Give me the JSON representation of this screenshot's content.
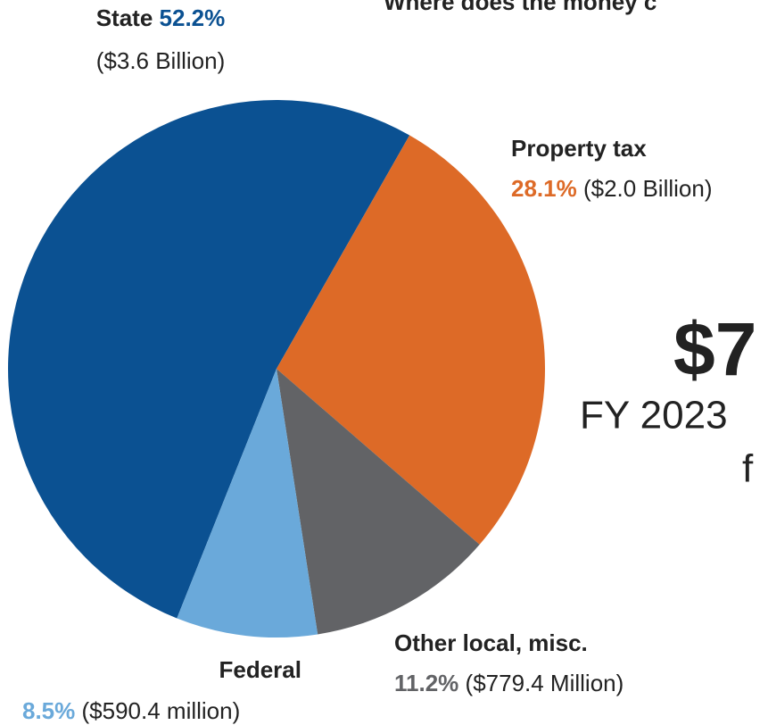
{
  "chart_data": {
    "type": "pie",
    "title": "Where does the money c",
    "big_total": "$7",
    "subtitle_line1": "FY 2023",
    "subtitle_line2": "f",
    "categories": [
      "State",
      "Property tax",
      "Other local, misc.",
      "Federal"
    ],
    "values": [
      52.2,
      28.1,
      11.2,
      8.5
    ],
    "value_labels": [
      "52.2%",
      "28.1%",
      "11.2%",
      "8.5%"
    ],
    "amounts": [
      "($3.6 Billion)",
      "($2.0 Billion)",
      "($779.4 Million)",
      "($590.4 million)"
    ],
    "colors": [
      "#0b5192",
      "#dd6a27",
      "#626366",
      "#6aa9da"
    ],
    "title_color": "#dd6a27"
  }
}
